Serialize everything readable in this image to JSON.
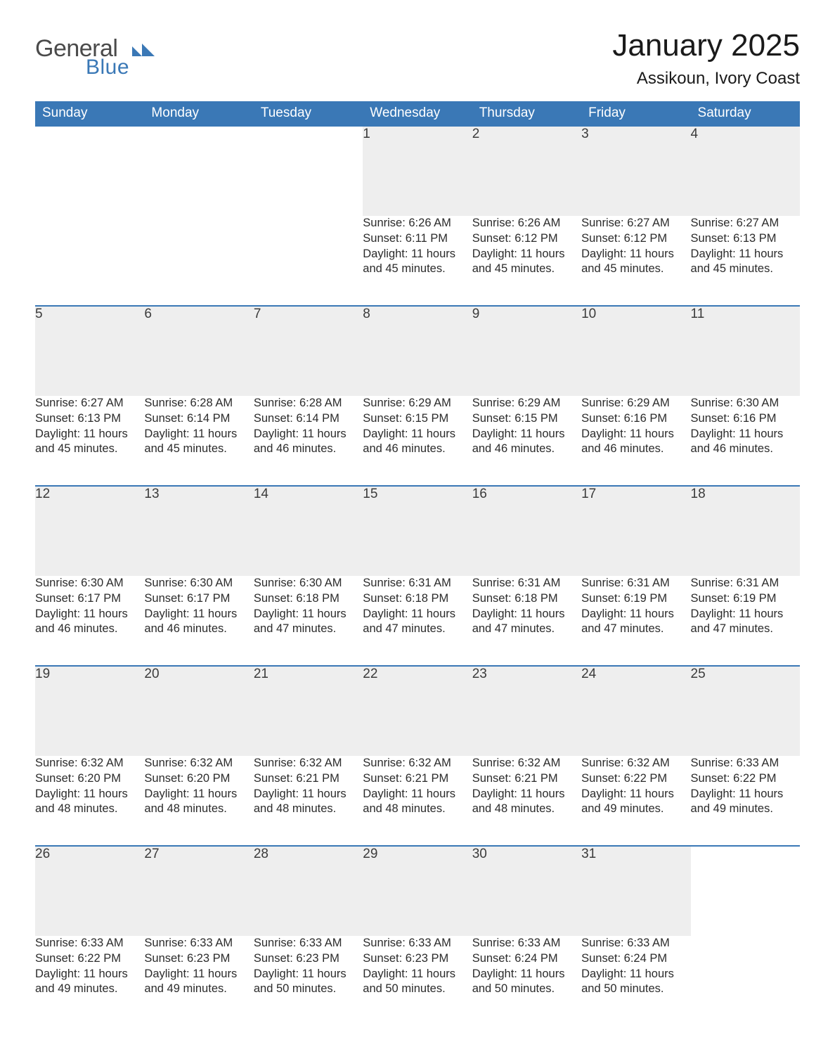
{
  "brand": {
    "part1": "General",
    "part2": "Blue",
    "color_gray": "#4a4a4a",
    "color_blue": "#3a78b6"
  },
  "title": "January 2025",
  "location": "Assikoun, Ivory Coast",
  "colors": {
    "header_bg": "#3a78b6",
    "header_text": "#ffffff",
    "daynum_bg": "#eeeeee",
    "row_divider": "#3a78b6",
    "body_text": "#2b2b2b",
    "page_bg": "#ffffff"
  },
  "day_headers": [
    "Sunday",
    "Monday",
    "Tuesday",
    "Wednesday",
    "Thursday",
    "Friday",
    "Saturday"
  ],
  "weeks": [
    {
      "nums": [
        "",
        "",
        "",
        "1",
        "2",
        "3",
        "4"
      ],
      "sunrise": [
        "",
        "",
        "",
        "Sunrise: 6:26 AM",
        "Sunrise: 6:26 AM",
        "Sunrise: 6:27 AM",
        "Sunrise: 6:27 AM"
      ],
      "sunset": [
        "",
        "",
        "",
        "Sunset: 6:11 PM",
        "Sunset: 6:12 PM",
        "Sunset: 6:12 PM",
        "Sunset: 6:13 PM"
      ],
      "day1": [
        "",
        "",
        "",
        "Daylight: 11 hours",
        "Daylight: 11 hours",
        "Daylight: 11 hours",
        "Daylight: 11 hours"
      ],
      "day2": [
        "",
        "",
        "",
        "and 45 minutes.",
        "and 45 minutes.",
        "and 45 minutes.",
        "and 45 minutes."
      ]
    },
    {
      "nums": [
        "5",
        "6",
        "7",
        "8",
        "9",
        "10",
        "11"
      ],
      "sunrise": [
        "Sunrise: 6:27 AM",
        "Sunrise: 6:28 AM",
        "Sunrise: 6:28 AM",
        "Sunrise: 6:29 AM",
        "Sunrise: 6:29 AM",
        "Sunrise: 6:29 AM",
        "Sunrise: 6:30 AM"
      ],
      "sunset": [
        "Sunset: 6:13 PM",
        "Sunset: 6:14 PM",
        "Sunset: 6:14 PM",
        "Sunset: 6:15 PM",
        "Sunset: 6:15 PM",
        "Sunset: 6:16 PM",
        "Sunset: 6:16 PM"
      ],
      "day1": [
        "Daylight: 11 hours",
        "Daylight: 11 hours",
        "Daylight: 11 hours",
        "Daylight: 11 hours",
        "Daylight: 11 hours",
        "Daylight: 11 hours",
        "Daylight: 11 hours"
      ],
      "day2": [
        "and 45 minutes.",
        "and 45 minutes.",
        "and 46 minutes.",
        "and 46 minutes.",
        "and 46 minutes.",
        "and 46 minutes.",
        "and 46 minutes."
      ]
    },
    {
      "nums": [
        "12",
        "13",
        "14",
        "15",
        "16",
        "17",
        "18"
      ],
      "sunrise": [
        "Sunrise: 6:30 AM",
        "Sunrise: 6:30 AM",
        "Sunrise: 6:30 AM",
        "Sunrise: 6:31 AM",
        "Sunrise: 6:31 AM",
        "Sunrise: 6:31 AM",
        "Sunrise: 6:31 AM"
      ],
      "sunset": [
        "Sunset: 6:17 PM",
        "Sunset: 6:17 PM",
        "Sunset: 6:18 PM",
        "Sunset: 6:18 PM",
        "Sunset: 6:18 PM",
        "Sunset: 6:19 PM",
        "Sunset: 6:19 PM"
      ],
      "day1": [
        "Daylight: 11 hours",
        "Daylight: 11 hours",
        "Daylight: 11 hours",
        "Daylight: 11 hours",
        "Daylight: 11 hours",
        "Daylight: 11 hours",
        "Daylight: 11 hours"
      ],
      "day2": [
        "and 46 minutes.",
        "and 46 minutes.",
        "and 47 minutes.",
        "and 47 minutes.",
        "and 47 minutes.",
        "and 47 minutes.",
        "and 47 minutes."
      ]
    },
    {
      "nums": [
        "19",
        "20",
        "21",
        "22",
        "23",
        "24",
        "25"
      ],
      "sunrise": [
        "Sunrise: 6:32 AM",
        "Sunrise: 6:32 AM",
        "Sunrise: 6:32 AM",
        "Sunrise: 6:32 AM",
        "Sunrise: 6:32 AM",
        "Sunrise: 6:32 AM",
        "Sunrise: 6:33 AM"
      ],
      "sunset": [
        "Sunset: 6:20 PM",
        "Sunset: 6:20 PM",
        "Sunset: 6:21 PM",
        "Sunset: 6:21 PM",
        "Sunset: 6:21 PM",
        "Sunset: 6:22 PM",
        "Sunset: 6:22 PM"
      ],
      "day1": [
        "Daylight: 11 hours",
        "Daylight: 11 hours",
        "Daylight: 11 hours",
        "Daylight: 11 hours",
        "Daylight: 11 hours",
        "Daylight: 11 hours",
        "Daylight: 11 hours"
      ],
      "day2": [
        "and 48 minutes.",
        "and 48 minutes.",
        "and 48 minutes.",
        "and 48 minutes.",
        "and 48 minutes.",
        "and 49 minutes.",
        "and 49 minutes."
      ]
    },
    {
      "nums": [
        "26",
        "27",
        "28",
        "29",
        "30",
        "31",
        ""
      ],
      "sunrise": [
        "Sunrise: 6:33 AM",
        "Sunrise: 6:33 AM",
        "Sunrise: 6:33 AM",
        "Sunrise: 6:33 AM",
        "Sunrise: 6:33 AM",
        "Sunrise: 6:33 AM",
        ""
      ],
      "sunset": [
        "Sunset: 6:22 PM",
        "Sunset: 6:23 PM",
        "Sunset: 6:23 PM",
        "Sunset: 6:23 PM",
        "Sunset: 6:24 PM",
        "Sunset: 6:24 PM",
        ""
      ],
      "day1": [
        "Daylight: 11 hours",
        "Daylight: 11 hours",
        "Daylight: 11 hours",
        "Daylight: 11 hours",
        "Daylight: 11 hours",
        "Daylight: 11 hours",
        ""
      ],
      "day2": [
        "and 49 minutes.",
        "and 49 minutes.",
        "and 50 minutes.",
        "and 50 minutes.",
        "and 50 minutes.",
        "and 50 minutes.",
        ""
      ]
    }
  ]
}
